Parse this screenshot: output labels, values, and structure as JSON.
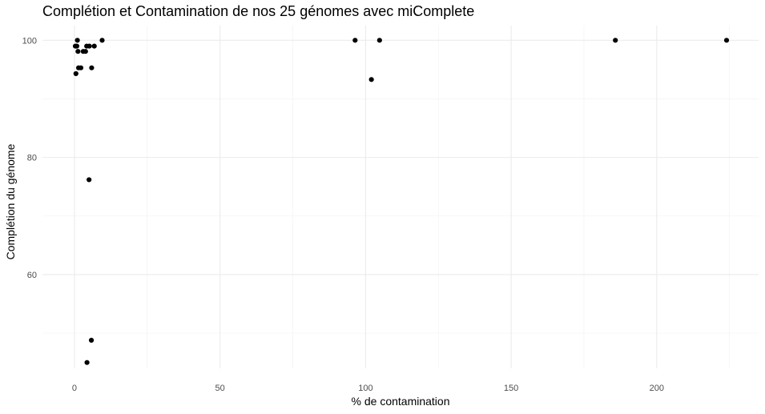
{
  "chart_data": {
    "type": "scatter",
    "title": "Complétion et Contamination de nos 25 génomes avec miComplete",
    "xlabel": "% de contamination",
    "ylabel": "Complétion du génome",
    "xlim": [
      -11,
      235
    ],
    "ylim": [
      44,
      102.5
    ],
    "x_ticks": [
      0,
      50,
      100,
      150,
      200
    ],
    "x_minor_ticks": [
      25,
      75,
      125,
      175,
      225
    ],
    "y_ticks": [
      60,
      80,
      100
    ],
    "y_minor_ticks": [
      50,
      70,
      90
    ],
    "grid": true,
    "legend": "none",
    "colors": {
      "points": "#000000",
      "grid_major": "#ebebeb",
      "grid_minor": "#f4f4f4",
      "tick_labels": "#4d4d4d"
    },
    "points": [
      {
        "x": 0.3,
        "y": 99.0
      },
      {
        "x": 0.5,
        "y": 94.3
      },
      {
        "x": 0.8,
        "y": 99.0
      },
      {
        "x": 1.0,
        "y": 100.0
      },
      {
        "x": 1.2,
        "y": 98.1
      },
      {
        "x": 1.4,
        "y": 95.3
      },
      {
        "x": 2.2,
        "y": 95.3
      },
      {
        "x": 3.0,
        "y": 98.1
      },
      {
        "x": 3.8,
        "y": 98.1
      },
      {
        "x": 4.2,
        "y": 99.0
      },
      {
        "x": 4.3,
        "y": 45.0
      },
      {
        "x": 5.0,
        "y": 76.2
      },
      {
        "x": 5.1,
        "y": 99.0
      },
      {
        "x": 5.8,
        "y": 48.8
      },
      {
        "x": 5.9,
        "y": 95.3
      },
      {
        "x": 6.8,
        "y": 99.0
      },
      {
        "x": 9.5,
        "y": 100.0
      },
      {
        "x": 96.4,
        "y": 100.0
      },
      {
        "x": 102.0,
        "y": 93.3
      },
      {
        "x": 104.8,
        "y": 100.0
      },
      {
        "x": 185.8,
        "y": 100.0
      },
      {
        "x": 224.0,
        "y": 100.0
      }
    ]
  }
}
